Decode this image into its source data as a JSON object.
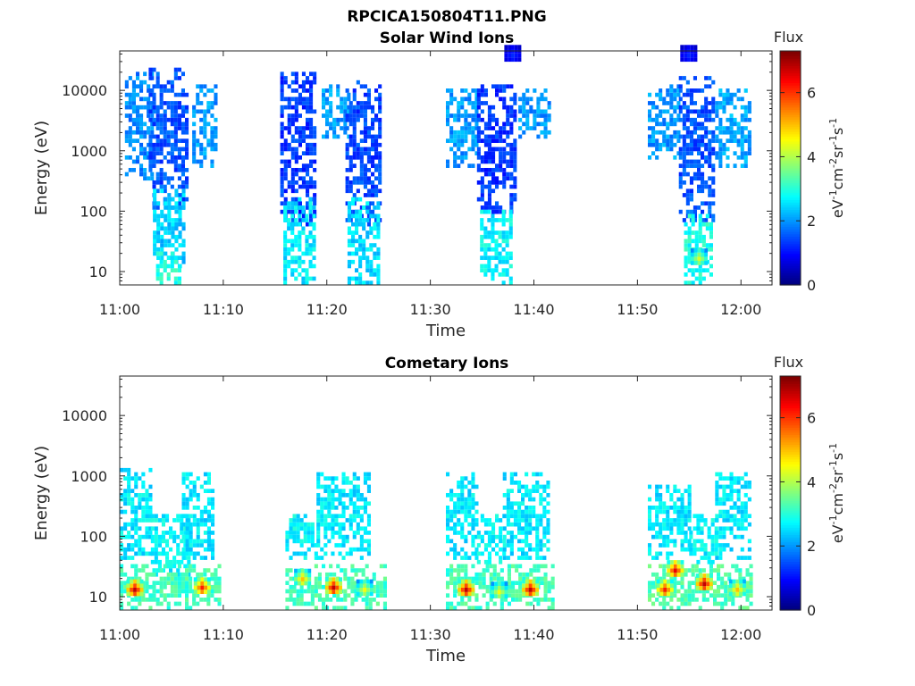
{
  "figure": {
    "suptitle": "RPCICA150804T11.PNG"
  },
  "colormap": "jet",
  "chart_data": [
    {
      "type": "heatmap",
      "title": "Solar Wind Ions",
      "xlabel": "Time",
      "ylabel": "Energy (eV)",
      "y_scale": "log",
      "ylim": [
        6,
        45000
      ],
      "xlim": [
        "11:00",
        "12:03"
      ],
      "x_ticks": [
        "11:00",
        "11:10",
        "11:20",
        "11:30",
        "11:40",
        "11:50",
        "12:00"
      ],
      "y_ticks": [
        "10",
        "100",
        "1000",
        "10000"
      ],
      "colorbar": {
        "label": "Flux",
        "units": "eV-1cm-2sr-1s-1",
        "range": [
          0,
          7.3
        ],
        "ticks": [
          "0",
          "2",
          "4",
          "6"
        ]
      },
      "x_unit_note": "minutes after 11:00",
      "bursts": [
        {
          "t_start": 0.5,
          "t_end": 3.0,
          "e_min": 300,
          "e_max": 20000,
          "flux": 1.9
        },
        {
          "t_start": 2.8,
          "t_end": 6.3,
          "e_min": 100,
          "e_max": 22000,
          "flux": 1.5
        },
        {
          "t_start": 3.2,
          "t_end": 6.0,
          "e_min": 10,
          "e_max": 200,
          "flux": 2.4
        },
        {
          "t_start": 3.5,
          "t_end": 5.8,
          "e_min": 6,
          "e_max": 20,
          "flux": 3.0
        },
        {
          "t_start": 7.0,
          "t_end": 9.3,
          "e_min": 500,
          "e_max": 12000,
          "flux": 2.0
        },
        {
          "t_start": 15.5,
          "t_end": 19.0,
          "e_min": 50,
          "e_max": 20000,
          "flux": 1.3
        },
        {
          "t_start": 15.8,
          "t_end": 18.8,
          "e_min": 6,
          "e_max": 150,
          "flux": 2.6
        },
        {
          "t_start": 19.5,
          "t_end": 22.0,
          "e_min": 1500,
          "e_max": 12000,
          "flux": 2.0
        },
        {
          "t_start": 21.8,
          "t_end": 25.2,
          "e_min": 50,
          "e_max": 13000,
          "flux": 1.4
        },
        {
          "t_start": 22.0,
          "t_end": 25.0,
          "e_min": 6,
          "e_max": 150,
          "flux": 2.5
        },
        {
          "t_start": 31.5,
          "t_end": 34.5,
          "e_min": 500,
          "e_max": 10000,
          "flux": 2.0
        },
        {
          "t_start": 34.5,
          "t_end": 38.3,
          "e_min": 80,
          "e_max": 12000,
          "flux": 1.3
        },
        {
          "t_start": 34.8,
          "t_end": 37.8,
          "e_min": 6,
          "e_max": 100,
          "flux": 2.7
        },
        {
          "t_start": 38.5,
          "t_end": 41.5,
          "e_min": 1500,
          "e_max": 10000,
          "flux": 2.0
        },
        {
          "t_start": 51.0,
          "t_end": 54.0,
          "e_min": 700,
          "e_max": 12000,
          "flux": 2.0
        },
        {
          "t_start": 54.0,
          "t_end": 57.5,
          "e_min": 60,
          "e_max": 15000,
          "flux": 1.5
        },
        {
          "t_start": 54.5,
          "t_end": 57.0,
          "e_min": 6,
          "e_max": 80,
          "flux": 2.9
        },
        {
          "t_start": 57.5,
          "t_end": 61.0,
          "e_min": 500,
          "e_max": 10000,
          "flux": 2.1
        }
      ],
      "hotspots": [
        {
          "t": 55.8,
          "e": 15,
          "flux": 4.3
        },
        {
          "t": 37.8,
          "e": 35000,
          "flux": 1.2
        },
        {
          "t": 54.8,
          "e": 35000,
          "flux": 1.2
        }
      ]
    },
    {
      "type": "heatmap",
      "title": "Cometary Ions",
      "xlabel": "Time",
      "ylabel": "Energy (eV)",
      "y_scale": "log",
      "ylim": [
        6,
        45000
      ],
      "xlim": [
        "11:00",
        "12:03"
      ],
      "x_ticks": [
        "11:00",
        "11:10",
        "11:20",
        "11:30",
        "11:40",
        "11:50",
        "12:00"
      ],
      "y_ticks": [
        "10",
        "100",
        "1000",
        "10000"
      ],
      "colorbar": {
        "label": "Flux",
        "units": "eV-1cm-2sr-1s-1",
        "range": [
          0,
          7.3
        ],
        "ticks": [
          "0",
          "2",
          "4",
          "6"
        ]
      },
      "x_unit_note": "minutes after 11:00",
      "bursts": [
        {
          "t_start": 0.0,
          "t_end": 3.0,
          "e_min": 40,
          "e_max": 1200,
          "flux": 2.6
        },
        {
          "t_start": 3.0,
          "t_end": 6.5,
          "e_min": 20,
          "e_max": 200,
          "flux": 2.7
        },
        {
          "t_start": 6.0,
          "t_end": 9.0,
          "e_min": 40,
          "e_max": 1000,
          "flux": 2.6
        },
        {
          "t_start": 0.0,
          "t_end": 9.5,
          "e_min": 6,
          "e_max": 30,
          "flux": 3.2
        },
        {
          "t_start": 16.0,
          "t_end": 25.5,
          "e_min": 6,
          "e_max": 30,
          "flux": 3.2
        },
        {
          "t_start": 16.0,
          "t_end": 19.0,
          "e_min": 40,
          "e_max": 200,
          "flux": 2.7
        },
        {
          "t_start": 19.0,
          "t_end": 24.0,
          "e_min": 40,
          "e_max": 1000,
          "flux": 2.6
        },
        {
          "t_start": 31.5,
          "t_end": 42.0,
          "e_min": 6,
          "e_max": 30,
          "flux": 3.2
        },
        {
          "t_start": 31.5,
          "t_end": 34.5,
          "e_min": 40,
          "e_max": 1000,
          "flux": 2.6
        },
        {
          "t_start": 34.5,
          "t_end": 37.0,
          "e_min": 30,
          "e_max": 200,
          "flux": 2.7
        },
        {
          "t_start": 37.0,
          "t_end": 41.5,
          "e_min": 40,
          "e_max": 1000,
          "flux": 2.6
        },
        {
          "t_start": 51.0,
          "t_end": 61.0,
          "e_min": 6,
          "e_max": 30,
          "flux": 3.3
        },
        {
          "t_start": 51.0,
          "t_end": 55.0,
          "e_min": 40,
          "e_max": 700,
          "flux": 2.6
        },
        {
          "t_start": 55.0,
          "t_end": 57.5,
          "e_min": 30,
          "e_max": 200,
          "flux": 2.7
        },
        {
          "t_start": 57.5,
          "t_end": 61.0,
          "e_min": 40,
          "e_max": 1000,
          "flux": 2.6
        }
      ],
      "hotspots": [
        {
          "t": 1.3,
          "e": 12,
          "flux": 6.8
        },
        {
          "t": 7.8,
          "e": 13,
          "flux": 6.2
        },
        {
          "t": 17.5,
          "e": 18,
          "flux": 5.0
        },
        {
          "t": 20.5,
          "e": 13,
          "flux": 6.8
        },
        {
          "t": 23.5,
          "e": 12,
          "flux": 4.5
        },
        {
          "t": 33.3,
          "e": 12,
          "flux": 6.8
        },
        {
          "t": 36.5,
          "e": 11,
          "flux": 4.5
        },
        {
          "t": 39.5,
          "e": 12,
          "flux": 6.8
        },
        {
          "t": 52.5,
          "e": 12,
          "flux": 6.2
        },
        {
          "t": 53.5,
          "e": 25,
          "flux": 6.5
        },
        {
          "t": 56.3,
          "e": 15,
          "flux": 6.8
        },
        {
          "t": 59.5,
          "e": 12,
          "flux": 5.0
        }
      ]
    }
  ]
}
